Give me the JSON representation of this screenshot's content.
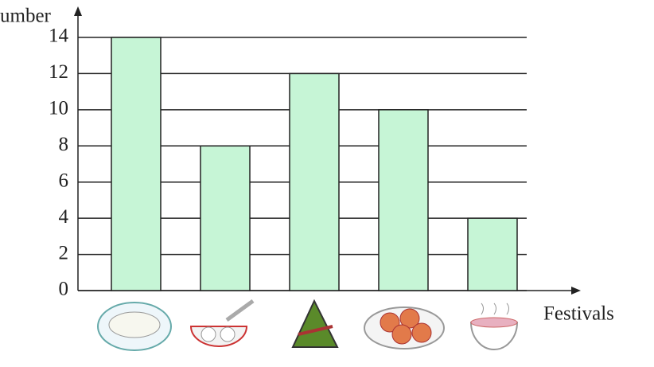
{
  "chart_data": {
    "type": "bar",
    "y_label": "umber",
    "x_label": "Festivals",
    "categories": [
      null,
      null,
      null,
      null,
      null
    ],
    "values": [
      14,
      8,
      12,
      10,
      4
    ],
    "color": "#c6f5d6",
    "ylim": [
      0,
      14
    ],
    "yticks": [
      0,
      2,
      4,
      6,
      8,
      10,
      12,
      14
    ],
    "grid": true
  }
}
